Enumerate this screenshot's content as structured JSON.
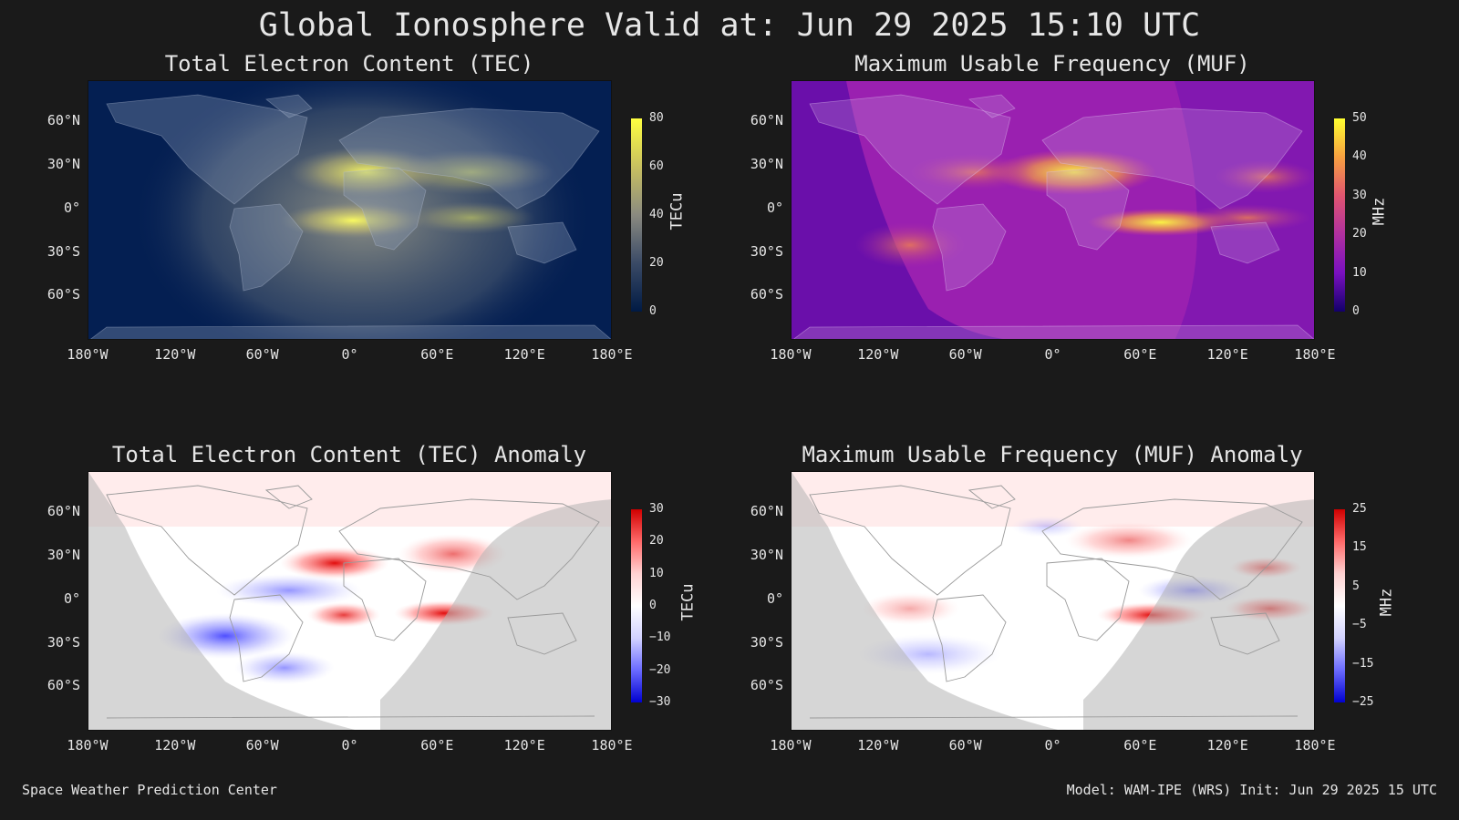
{
  "title": "Global Ionosphere Valid at: Jun 29 2025 15:10 UTC",
  "lat_ticks": [
    "60°N",
    "30°N",
    "0°",
    "30°S",
    "60°S"
  ],
  "lon_ticks": [
    "180°W",
    "120°W",
    "60°W",
    "0°",
    "60°E",
    "120°E",
    "180°E"
  ],
  "panels": {
    "tec": {
      "title": "Total Electron Content (TEC)",
      "unit": "TECu",
      "ticks": [
        "80",
        "60",
        "40",
        "20",
        "0"
      ],
      "colors": [
        "#ffff40",
        "#c8c060",
        "#8a8a80",
        "#3a4a66",
        "#001a44"
      ]
    },
    "muf": {
      "title": "Maximum Usable Frequency (MUF)",
      "unit": "MHz",
      "ticks": [
        "50",
        "40",
        "30",
        "20",
        "10",
        "0"
      ],
      "colors": [
        "#ffff30",
        "#f7a040",
        "#e05570",
        "#b030a0",
        "#7a10c0",
        "#12006a"
      ]
    },
    "tec_anom": {
      "title": "Total Electron Content (TEC) Anomaly",
      "unit": "TECu",
      "ticks": [
        "30",
        "20",
        "10",
        "0",
        "−10",
        "−20",
        "−30"
      ],
      "colors": [
        "#d00000",
        "#ff6a6a",
        "#ffd2d2",
        "#ffffff",
        "#d2d2ff",
        "#6a6aff",
        "#0000d0"
      ]
    },
    "muf_anom": {
      "title": "Maximum Usable Frequency (MUF) Anomaly",
      "unit": "MHz",
      "ticks": [
        "25",
        "15",
        "5",
        "−5",
        "−15",
        "−25"
      ],
      "colors": [
        "#d00000",
        "#ff6a6a",
        "#ffd2d2",
        "#ffffff",
        "#d2d2ff",
        "#6a6aff",
        "#0000d0"
      ]
    }
  },
  "footer": {
    "left": "Space Weather Prediction Center",
    "right": "Model: WAM-IPE (WRS) Init: Jun 29 2025 15 UTC"
  }
}
